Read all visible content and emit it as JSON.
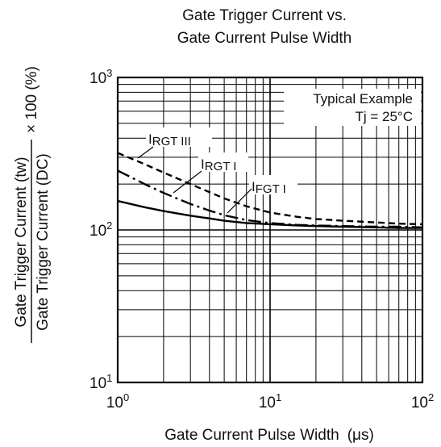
{
  "chart_data": {
    "type": "line",
    "title_lines": [
      "Gate Trigger Current vs.",
      "Gate Current Pulse Width"
    ],
    "xlabel": "Gate Current Pulse Width",
    "xlabel_unit": "(μs)",
    "ylabel_numerator": "Gate Trigger Current  (tw)",
    "ylabel_denominator": "Gate Trigger Current  (DC)",
    "ylabel_suffix": "× 100 (%)",
    "x_scale": "log",
    "y_scale": "log",
    "xlim": [
      1,
      100
    ],
    "ylim": [
      10,
      1000
    ],
    "x_ticks": [
      {
        "base": "10",
        "exp": "0",
        "value": 1
      },
      {
        "base": "10",
        "exp": "1",
        "value": 10
      },
      {
        "base": "10",
        "exp": "2",
        "value": 100
      }
    ],
    "y_ticks": [
      {
        "base": "10",
        "exp": "3",
        "value": 1000
      },
      {
        "base": "10",
        "exp": "2",
        "value": 100
      },
      {
        "base": "10",
        "exp": "1",
        "value": 10
      }
    ],
    "grid": true,
    "legend_box": {
      "line1": "Typical Example",
      "line2": "Tj = 25°C",
      "placement": "top-right"
    },
    "series": [
      {
        "name": "IRGT III",
        "label_main": "I",
        "label_sub": "RGT III",
        "style": "dashed",
        "x": [
          1,
          1.5,
          2,
          3,
          4,
          5,
          7,
          10,
          15,
          20,
          30,
          50,
          70,
          100
        ],
        "y": [
          320,
          270,
          238,
          200,
          177,
          161,
          143,
          130,
          122,
          118,
          115,
          112,
          110,
          109
        ]
      },
      {
        "name": "IRGT I",
        "label_main": "I",
        "label_sub": "RGT I",
        "style": "dashdot",
        "x": [
          1,
          1.5,
          2,
          3,
          4,
          5,
          7,
          10,
          15,
          20,
          30,
          50,
          70,
          100
        ],
        "y": [
          245,
          200,
          175,
          148,
          134,
          125,
          116,
          111,
          108,
          107,
          106,
          105,
          105,
          104
        ]
      },
      {
        "name": "IFGT I",
        "label_main": "I",
        "label_sub": "FGT I",
        "style": "solid",
        "x": [
          1,
          1.5,
          2,
          3,
          4,
          5,
          7,
          10,
          15,
          20,
          30,
          50,
          70,
          100
        ],
        "y": [
          155,
          141,
          133,
          124,
          119,
          115,
          111,
          109,
          107,
          106,
          105,
          104,
          103,
          103
        ]
      }
    ]
  }
}
